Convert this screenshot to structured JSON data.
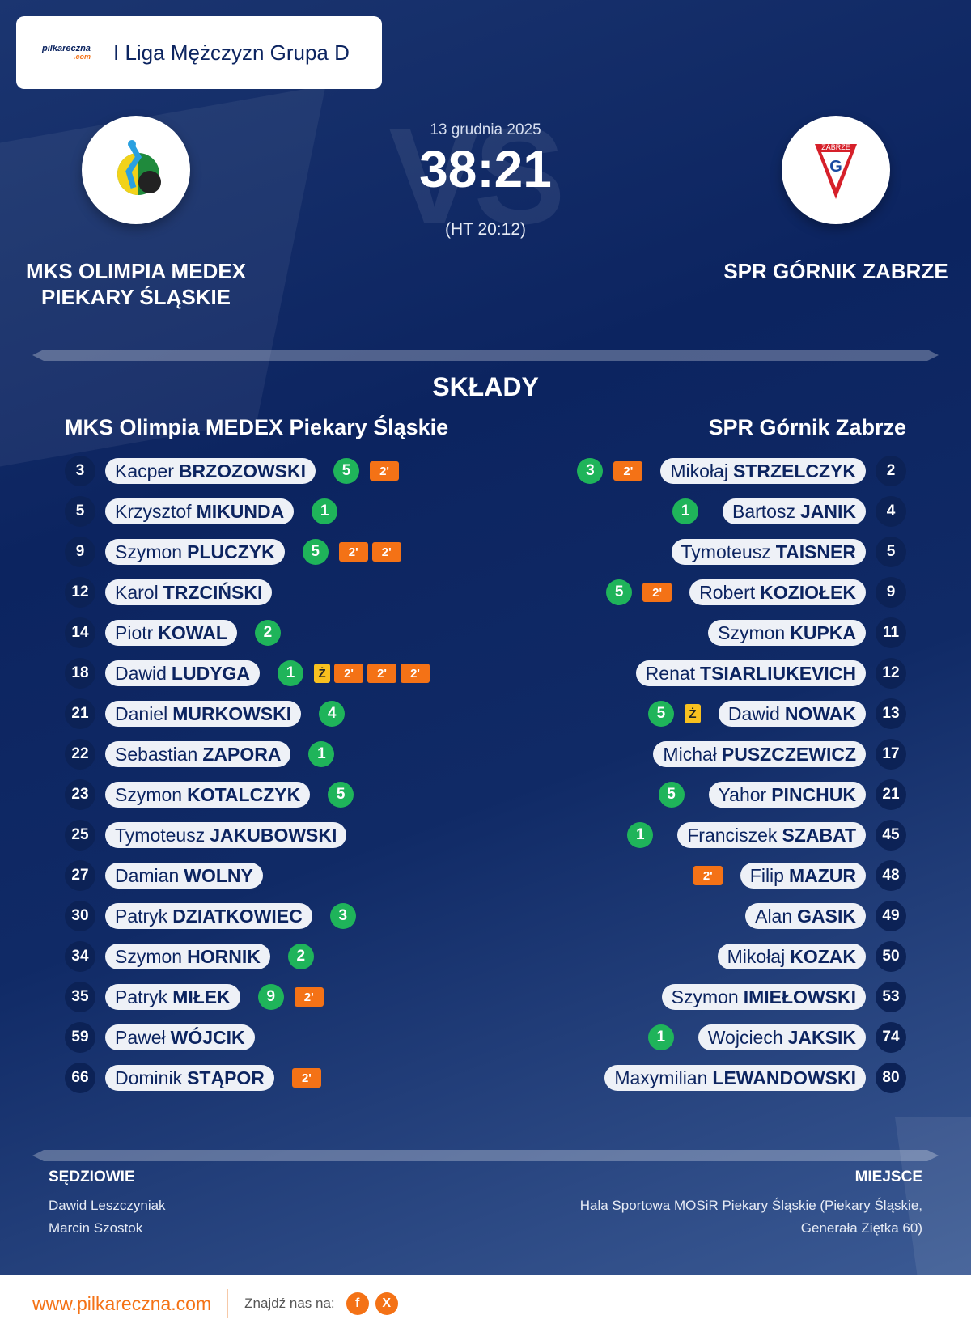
{
  "header": {
    "league": "I Liga Mężczyzn Grupa D",
    "logo_text": "pilkareczna",
    "logo_sub": ".com"
  },
  "match": {
    "date": "13 grudnia 2025",
    "score": "38:21",
    "halftime": "(HT 20:12)",
    "vs": "VS"
  },
  "home": {
    "name_line1": "MKS OLIMPIA MEDEX",
    "name_line2": "PIEKARY ŚLĄSKIE",
    "lineup_title": "MKS Olimpia MEDEX Piekary Śląskie"
  },
  "away": {
    "name": "SPR GÓRNIK ZABRZE",
    "crest_text": "ZABRZE",
    "lineup_title": "SPR Górnik Zabrze"
  },
  "section_title": "SKŁADY",
  "colors": {
    "goal": "#1fb45a",
    "suspension": "#f47216",
    "yellow": "#f8c01f",
    "bg": "#0c2460"
  },
  "home_players": [
    {
      "num": "3",
      "first": "Kacper",
      "last": "BRZOZOWSKI",
      "goals": "5",
      "cards": [
        "2'"
      ]
    },
    {
      "num": "5",
      "first": "Krzysztof",
      "last": "MIKUNDA",
      "goals": "1",
      "cards": []
    },
    {
      "num": "9",
      "first": "Szymon",
      "last": "PLUCZYK",
      "goals": "5",
      "cards": [
        "2'",
        "2'"
      ]
    },
    {
      "num": "12",
      "first": "Karol",
      "last": "TRZCIŃSKI",
      "goals": "",
      "cards": []
    },
    {
      "num": "14",
      "first": "Piotr",
      "last": "KOWAL",
      "goals": "2",
      "cards": []
    },
    {
      "num": "18",
      "first": "Dawid",
      "last": "LUDYGA",
      "goals": "1",
      "cards": [
        "Ż",
        "2'",
        "2'",
        "2'"
      ]
    },
    {
      "num": "21",
      "first": "Daniel",
      "last": "MURKOWSKI",
      "goals": "4",
      "cards": []
    },
    {
      "num": "22",
      "first": "Sebastian",
      "last": "ZAPORA",
      "goals": "1",
      "cards": []
    },
    {
      "num": "23",
      "first": "Szymon",
      "last": "KOTALCZYK",
      "goals": "5",
      "cards": []
    },
    {
      "num": "25",
      "first": "Tymoteusz",
      "last": "JAKUBOWSKI",
      "goals": "",
      "cards": []
    },
    {
      "num": "27",
      "first": "Damian",
      "last": "WOLNY",
      "goals": "",
      "cards": []
    },
    {
      "num": "30",
      "first": "Patryk",
      "last": "DZIATKOWIEC",
      "goals": "3",
      "cards": []
    },
    {
      "num": "34",
      "first": "Szymon",
      "last": "HORNIK",
      "goals": "2",
      "cards": []
    },
    {
      "num": "35",
      "first": "Patryk",
      "last": "MIŁEK",
      "goals": "9",
      "cards": [
        "2'"
      ]
    },
    {
      "num": "59",
      "first": "Paweł",
      "last": "WÓJCIK",
      "goals": "",
      "cards": []
    },
    {
      "num": "66",
      "first": "Dominik",
      "last": "STĄPOR",
      "goals": "",
      "cards": [
        "2'"
      ]
    }
  ],
  "away_players": [
    {
      "num": "2",
      "first": "Mikołaj",
      "last": "STRZELCZYK",
      "goals": "3",
      "cards": [
        "2'"
      ]
    },
    {
      "num": "4",
      "first": "Bartosz",
      "last": "JANIK",
      "goals": "1",
      "cards": []
    },
    {
      "num": "5",
      "first": "Tymoteusz",
      "last": "TAISNER",
      "goals": "",
      "cards": []
    },
    {
      "num": "9",
      "first": "Robert",
      "last": "KOZIOŁEK",
      "goals": "5",
      "cards": [
        "2'"
      ]
    },
    {
      "num": "11",
      "first": "Szymon",
      "last": "KUPKA",
      "goals": "",
      "cards": []
    },
    {
      "num": "12",
      "first": "Renat",
      "last": "TSIARLIUKEVICH",
      "goals": "",
      "cards": []
    },
    {
      "num": "13",
      "first": "Dawid",
      "last": "NOWAK",
      "goals": "5",
      "cards": [
        "Ż"
      ]
    },
    {
      "num": "17",
      "first": "Michał",
      "last": "PUSZCZEWICZ",
      "goals": "",
      "cards": []
    },
    {
      "num": "21",
      "first": "Yahor",
      "last": "PINCHUK",
      "goals": "5",
      "cards": []
    },
    {
      "num": "45",
      "first": "Franciszek",
      "last": "SZABAT",
      "goals": "1",
      "cards": []
    },
    {
      "num": "48",
      "first": "Filip",
      "last": "MAZUR",
      "goals": "",
      "cards": [
        "2'"
      ]
    },
    {
      "num": "49",
      "first": "Alan",
      "last": "GASIK",
      "goals": "",
      "cards": []
    },
    {
      "num": "50",
      "first": "Mikołaj",
      "last": "KOZAK",
      "goals": "",
      "cards": []
    },
    {
      "num": "53",
      "first": "Szymon",
      "last": "IMIEŁOWSKI",
      "goals": "",
      "cards": []
    },
    {
      "num": "74",
      "first": "Wojciech",
      "last": "JAKSIK",
      "goals": "1",
      "cards": []
    },
    {
      "num": "80",
      "first": "Maxymilian",
      "last": "LEWANDOWSKI",
      "goals": "",
      "cards": []
    }
  ],
  "referees": {
    "label": "SĘDZIOWIE",
    "names": [
      "Dawid Leszczyniak",
      "Marcin Szostok"
    ]
  },
  "venue": {
    "label": "MIEJSCE",
    "line1": "Hala Sportowa MOSiR Piekary Śląskie (Piekary Śląskie,",
    "line2": "Generała Ziętka 60)"
  },
  "footer": {
    "url": "www.pilkareczna.com",
    "find_us": "Znajdź nas na:",
    "social": [
      "f",
      "X"
    ]
  }
}
